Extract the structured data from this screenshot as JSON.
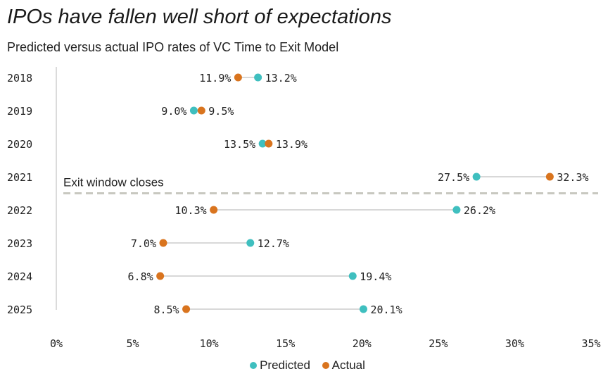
{
  "title": "IPOs have fallen well short of expectations",
  "subtitle": "Predicted versus actual IPO rates of VC Time to Exit Model",
  "chart_data": {
    "type": "dumbbell",
    "categories": [
      "2018",
      "2019",
      "2020",
      "2021",
      "2022",
      "2023",
      "2024",
      "2025"
    ],
    "series": [
      {
        "name": "Predicted",
        "color": "#3fbfbf",
        "values": [
          13.2,
          9.0,
          13.5,
          27.5,
          26.2,
          12.7,
          19.4,
          20.1
        ]
      },
      {
        "name": "Actual",
        "color": "#d9741e",
        "values": [
          11.9,
          9.5,
          13.9,
          32.3,
          10.3,
          7.0,
          6.8,
          8.5
        ]
      }
    ],
    "labels": {
      "Predicted": [
        "13.2%",
        "9.0%",
        "13.5%",
        "27.5%",
        "26.2%",
        "12.7%",
        "19.4%",
        "20.1%"
      ],
      "Actual": [
        "11.9%",
        "9.5%",
        "13.9%",
        "32.3%",
        "10.3%",
        "7.0%",
        "6.8%",
        "8.5%"
      ]
    },
    "xticks": [
      "0%",
      "5%",
      "10%",
      "15%",
      "20%",
      "25%",
      "30%",
      "35%"
    ],
    "xlim": [
      0,
      35
    ],
    "xlabel": "",
    "ylabel": "",
    "annotation": {
      "text": "Exit window closes",
      "between": [
        "2021",
        "2022"
      ]
    },
    "legend_position": "bottom-center",
    "grid": false
  }
}
